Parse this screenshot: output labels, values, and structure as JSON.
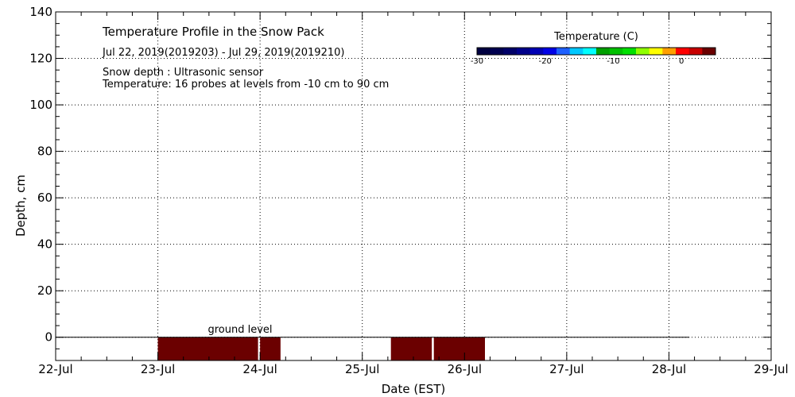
{
  "chart_data": {
    "type": "heatmap",
    "title": "Temperature Profile in the Snow Pack",
    "subtitle": "Jul 22, 2019(2019203) - Jul 29, 2019(2019210)",
    "notes": [
      "Snow depth : Ultrasonic sensor",
      "Temperature: 16 probes at levels from -10 cm to 90 cm"
    ],
    "xlabel": "Date (EST)",
    "ylabel": "Depth, cm",
    "x_ticks": [
      "22-Jul",
      "23-Jul",
      "24-Jul",
      "25-Jul",
      "26-Jul",
      "27-Jul",
      "28-Jul",
      "29-Jul"
    ],
    "xlim": [
      0,
      7
    ],
    "ylim": [
      -10,
      140
    ],
    "y_ticks": [
      0,
      20,
      40,
      60,
      80,
      100,
      120,
      140
    ],
    "grid": true,
    "ground_level_label": "ground level",
    "ground_line": {
      "y": 0,
      "x_range": [
        0,
        6.2
      ]
    },
    "temperature_blocks": [
      {
        "x0": 1.0,
        "x1": 1.98,
        "y0": -10,
        "y1": 0,
        "color": "#6b0000"
      },
      {
        "x0": 2.0,
        "x1": 2.2,
        "y0": -10,
        "y1": 0,
        "color": "#6b0000"
      },
      {
        "x0": 3.28,
        "x1": 3.68,
        "y0": -10,
        "y1": 0,
        "color": "#6b0000"
      },
      {
        "x0": 3.7,
        "x1": 4.2,
        "y0": -10,
        "y1": 0,
        "color": "#6b0000"
      }
    ],
    "colorbar": {
      "label": "Temperature (C)",
      "range": [
        -30,
        5
      ],
      "tick_values": [
        -30,
        -20,
        -10,
        0
      ],
      "tick_labels": [
        "-30",
        "-20",
        "-10",
        "0"
      ],
      "colors": [
        "#000040",
        "#000050",
        "#000068",
        "#00008a",
        "#0000b4",
        "#0000e6",
        "#1e60ff",
        "#00c8ff",
        "#00ffff",
        "#00a000",
        "#00c000",
        "#00e000",
        "#90ff00",
        "#ffff00",
        "#ffa000",
        "#ff0000",
        "#c80000",
        "#6b0000"
      ]
    }
  }
}
